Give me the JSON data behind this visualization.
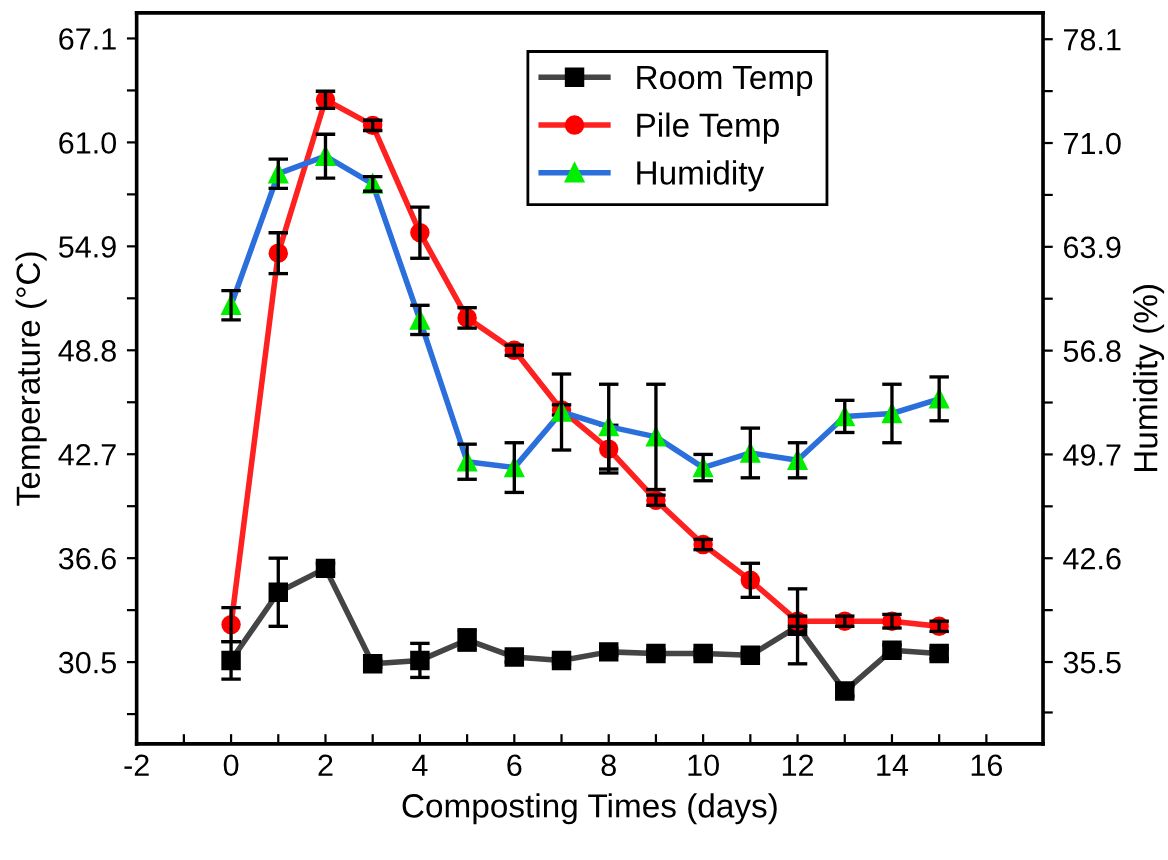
{
  "chart_data": {
    "type": "line",
    "xlabel": "Composting Times (days)",
    "ylabel": "Temperature (°C)",
    "y2label": "Humidity (%)",
    "x": [
      0,
      1,
      2,
      3,
      4,
      5,
      6,
      7,
      8,
      9,
      10,
      11,
      12,
      13,
      14,
      15
    ],
    "xlim": [
      -2,
      17.2
    ],
    "xticks": [
      -2,
      {
        "value": -1,
        "label": null
      },
      0,
      {
        "value": 1,
        "label": null
      },
      2,
      {
        "value": 3,
        "label": null
      },
      4,
      {
        "value": 5,
        "label": null
      },
      6,
      {
        "value": 7,
        "label": null
      },
      8,
      {
        "value": 9,
        "label": null
      },
      10,
      {
        "value": 11,
        "label": null
      },
      12,
      {
        "value": 13,
        "label": null
      },
      14,
      {
        "value": 15,
        "label": null
      },
      16
    ],
    "ylim": [
      25.7,
      68.6
    ],
    "yticks": [
      {
        "value": 27.45,
        "label": null
      },
      30.5,
      {
        "value": 33.55,
        "label": null
      },
      36.6,
      {
        "value": 39.65,
        "label": null
      },
      42.7,
      {
        "value": 45.75,
        "label": null
      },
      48.8,
      {
        "value": 51.85,
        "label": null
      },
      54.9,
      {
        "value": 57.95,
        "label": null
      },
      {
        "value": 61.0,
        "label": "61.0"
      },
      {
        "value": 64.05,
        "label": null
      },
      67.1
    ],
    "y2lim": [
      29.9,
      79.9
    ],
    "y2ticks": [
      {
        "value": 32.05,
        "label": null
      },
      35.5,
      {
        "value": 39.05,
        "label": null
      },
      42.6,
      {
        "value": 46.15,
        "label": null
      },
      49.7,
      {
        "value": 53.25,
        "label": null
      },
      56.8,
      {
        "value": 60.35,
        "label": null
      },
      63.9,
      {
        "value": 67.45,
        "label": null
      },
      {
        "value": 71.0,
        "label": "71.0"
      },
      {
        "value": 74.55,
        "label": null
      },
      78.1
    ],
    "legend": "top right",
    "grid": false,
    "line_style": "solid",
    "series": [
      {
        "name": "Room Temp",
        "color": "#444444",
        "marker": "square",
        "values": [
          30.6,
          34.6,
          36.0,
          30.4,
          30.6,
          31.8,
          30.8,
          30.6,
          31.1,
          31.0,
          31.0,
          30.9,
          32.6,
          28.8,
          31.2,
          31.0
        ],
        "errors": [
          1.1,
          2.0,
          0.3,
          0.2,
          1.0,
          0.6,
          0.3,
          0.2,
          0.2,
          0.2,
          0.2,
          0.2,
          2.2,
          0.3,
          0.3,
          0.3
        ]
      },
      {
        "name": "Pile Temp",
        "color": "#ff2020",
        "marker": "circle",
        "values": [
          32.7,
          54.5,
          63.5,
          62.0,
          55.7,
          50.7,
          48.8,
          45.3,
          43.0,
          40.0,
          37.4,
          35.3,
          32.9,
          32.9,
          32.9,
          32.6
        ],
        "errors": [
          1.0,
          1.2,
          0.5,
          0.3,
          1.5,
          0.6,
          0.3,
          0.3,
          1.4,
          0.3,
          0.3,
          1.0,
          0.3,
          0.3,
          0.4,
          0.3
        ]
      },
      {
        "name": "Humidity",
        "color": "#2a6fdb",
        "marker": "triangle",
        "axis": "y2",
        "values": [
          59.9,
          68.9,
          70.1,
          68.2,
          58.9,
          49.2,
          48.8,
          52.6,
          51.6,
          50.9,
          48.8,
          49.8,
          49.3,
          52.3,
          52.5,
          53.5
        ],
        "errors": [
          1.0,
          1.0,
          1.5,
          0.5,
          1.0,
          1.2,
          1.7,
          2.6,
          2.9,
          3.6,
          0.9,
          1.7,
          1.2,
          1.1,
          2.0,
          1.5
        ]
      }
    ]
  }
}
